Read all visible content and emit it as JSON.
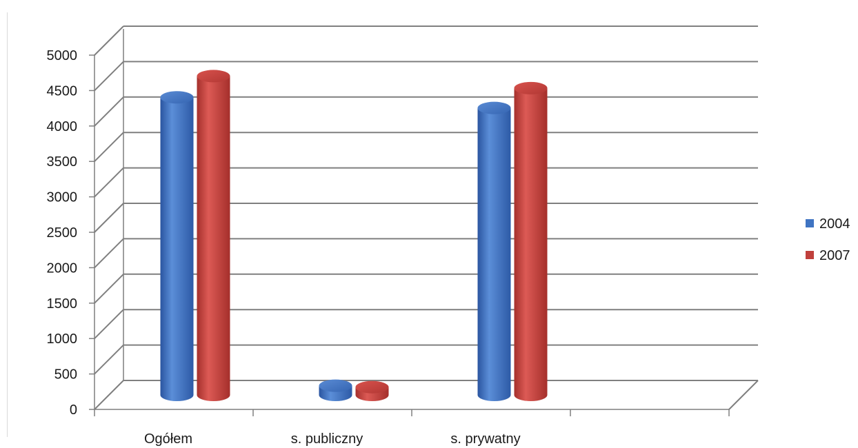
{
  "chart_data": {
    "type": "bar",
    "style": "3d-cylinder",
    "categories": [
      "Ogółem",
      "s. publiczny",
      "s. prywatny",
      ""
    ],
    "series": [
      {
        "name": "2004",
        "color": "#3f74c2",
        "values": [
          4200,
          130,
          4050,
          null
        ]
      },
      {
        "name": "2007",
        "color": "#c0403c",
        "values": [
          4500,
          110,
          4330,
          null
        ]
      }
    ],
    "ylim": [
      0,
      5000
    ],
    "yticks": [
      "0",
      "500",
      "1000",
      "1500",
      "2000",
      "2500",
      "3000",
      "3500",
      "4000",
      "4500",
      "5000"
    ],
    "grid": true,
    "legend": "right"
  }
}
